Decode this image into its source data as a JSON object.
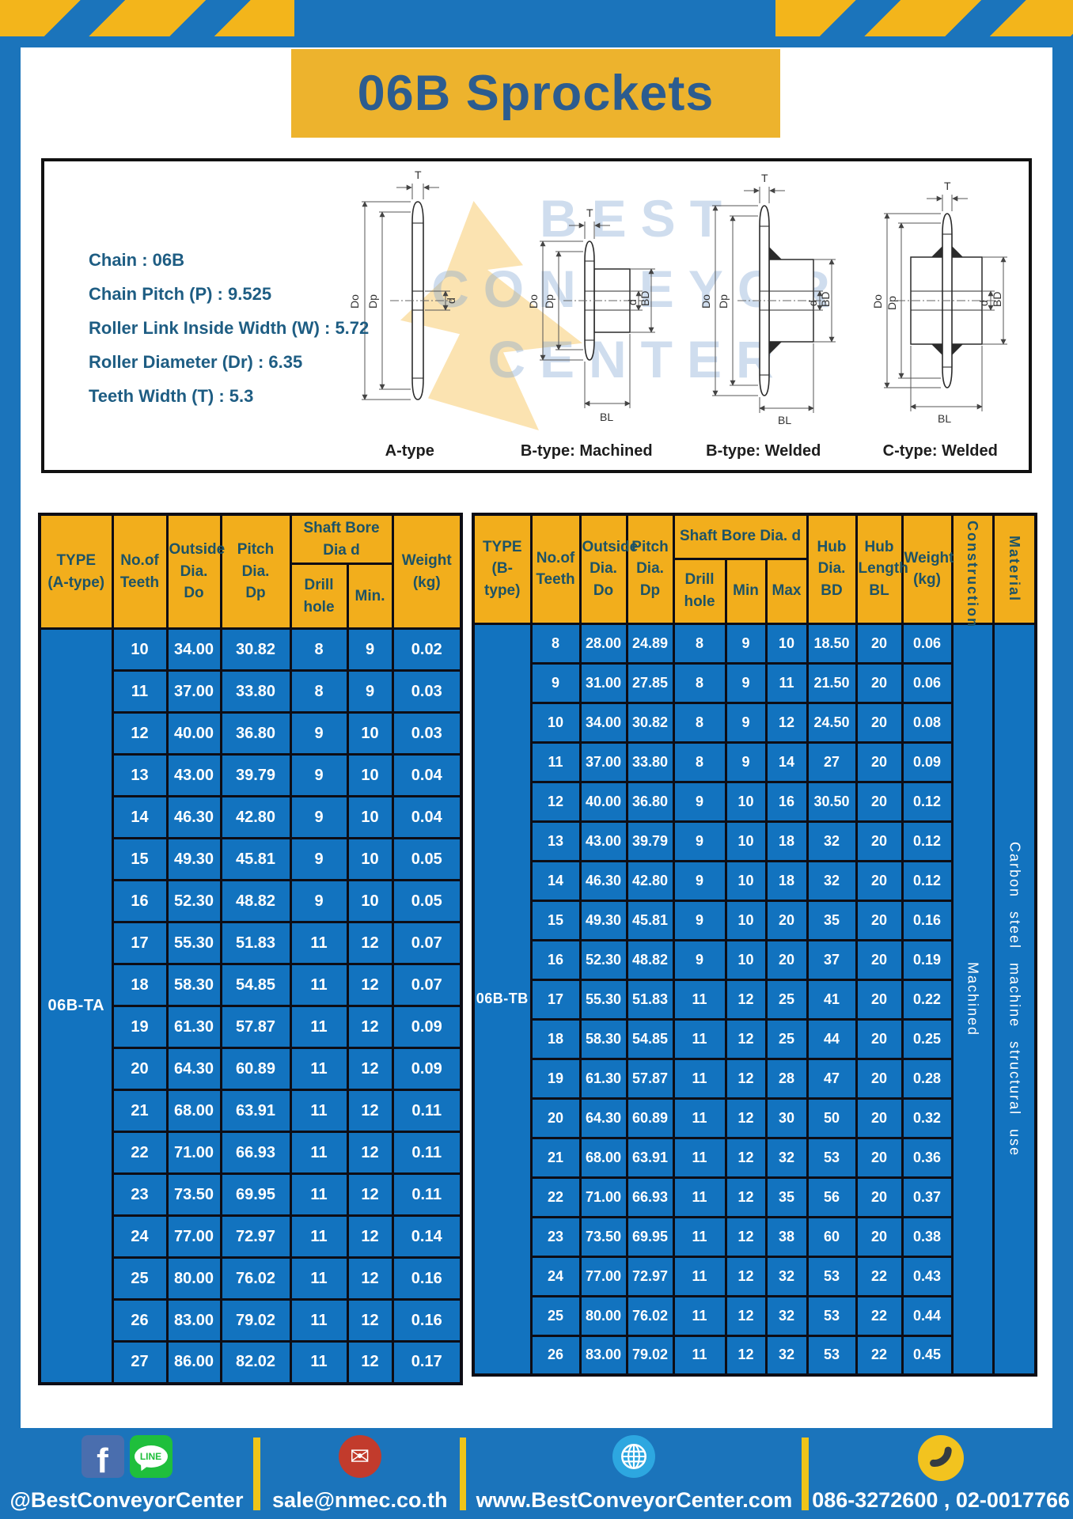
{
  "palette": {
    "frame_blue": "#1b74bb",
    "band_yellow": "#f3b51b",
    "title_yellow": "#edb32d",
    "title_text": "#2c5c8f",
    "header_yellow": "#f2ae1c",
    "header_text": "#1d5366",
    "cell_blue": "#1273bf",
    "cell_text": "#ffffff",
    "divider_yellow": "#f0c419"
  },
  "title": "06B Sprockets",
  "specs": [
    "Chain : 06B",
    "Chain Pitch (P) : 9.525",
    "Roller Link Inside Width (W) : 5.72",
    "Roller Diameter (Dr) : 6.35",
    "Teeth Width (T) : 5.3"
  ],
  "diagrams": {
    "watermark": {
      "line1": "BEST",
      "line2": "CONVEYOR",
      "line3": "CENTER"
    },
    "dims": {
      "t": "T",
      "do": "Do",
      "dp": "Dp",
      "d": "d",
      "bd": "BD",
      "bl": "BL"
    },
    "captions": [
      "A-type",
      "B-type: Machined",
      "B-type: Welded",
      "C-type: Welded"
    ]
  },
  "tables": {
    "a": {
      "type_header": "TYPE\n(A-type)",
      "teeth_header": "No.of\nTeeth",
      "outside_header": "Outside\nDia.\nDo",
      "pitch_header": "Pitch Dia.\nDp",
      "bore_group_header": "Shaft Bore Dia d",
      "drill_header": "Drill hole",
      "min_header": "Min.",
      "weight_header": "Weight\n(kg)",
      "type_label": "06B-TA",
      "rows": [
        [
          "10",
          "34.00",
          "30.82",
          "8",
          "9",
          "0.02"
        ],
        [
          "11",
          "37.00",
          "33.80",
          "8",
          "9",
          "0.03"
        ],
        [
          "12",
          "40.00",
          "36.80",
          "9",
          "10",
          "0.03"
        ],
        [
          "13",
          "43.00",
          "39.79",
          "9",
          "10",
          "0.04"
        ],
        [
          "14",
          "46.30",
          "42.80",
          "9",
          "10",
          "0.04"
        ],
        [
          "15",
          "49.30",
          "45.81",
          "9",
          "10",
          "0.05"
        ],
        [
          "16",
          "52.30",
          "48.82",
          "9",
          "10",
          "0.05"
        ],
        [
          "17",
          "55.30",
          "51.83",
          "11",
          "12",
          "0.07"
        ],
        [
          "18",
          "58.30",
          "54.85",
          "11",
          "12",
          "0.07"
        ],
        [
          "19",
          "61.30",
          "57.87",
          "11",
          "12",
          "0.09"
        ],
        [
          "20",
          "64.30",
          "60.89",
          "11",
          "12",
          "0.09"
        ],
        [
          "21",
          "68.00",
          "63.91",
          "11",
          "12",
          "0.11"
        ],
        [
          "22",
          "71.00",
          "66.93",
          "11",
          "12",
          "0.11"
        ],
        [
          "23",
          "73.50",
          "69.95",
          "11",
          "12",
          "0.11"
        ],
        [
          "24",
          "77.00",
          "72.97",
          "11",
          "12",
          "0.14"
        ],
        [
          "25",
          "80.00",
          "76.02",
          "11",
          "12",
          "0.16"
        ],
        [
          "26",
          "83.00",
          "79.02",
          "11",
          "12",
          "0.16"
        ],
        [
          "27",
          "86.00",
          "82.02",
          "11",
          "12",
          "0.17"
        ]
      ]
    },
    "b": {
      "type_header": "TYPE\n(B-type)",
      "teeth_header": "No.of\nTeeth",
      "outside_header": "Outside\nDia.\nDo",
      "pitch_header": "Pitch\nDia.\nDp",
      "bore_group_header": "Shaft Bore Dia. d",
      "drill_header": "Drill hole",
      "min_header": "Min",
      "max_header": "Max",
      "hub_dia_header": "Hub\nDia.\nBD",
      "hub_len_header": "Hub\nLength\nBL",
      "weight_header": "Weight\n(kg)",
      "construction_header": "Construction",
      "material_header": "Material",
      "type_label": "06B-TB",
      "construction_value": "Machined",
      "material_value": "Carbon steel machine structural use",
      "rows": [
        [
          "8",
          "28.00",
          "24.89",
          "8",
          "9",
          "10",
          "18.50",
          "20",
          "0.06"
        ],
        [
          "9",
          "31.00",
          "27.85",
          "8",
          "9",
          "11",
          "21.50",
          "20",
          "0.06"
        ],
        [
          "10",
          "34.00",
          "30.82",
          "8",
          "9",
          "12",
          "24.50",
          "20",
          "0.08"
        ],
        [
          "11",
          "37.00",
          "33.80",
          "8",
          "9",
          "14",
          "27",
          "20",
          "0.09"
        ],
        [
          "12",
          "40.00",
          "36.80",
          "9",
          "10",
          "16",
          "30.50",
          "20",
          "0.12"
        ],
        [
          "13",
          "43.00",
          "39.79",
          "9",
          "10",
          "18",
          "32",
          "20",
          "0.12"
        ],
        [
          "14",
          "46.30",
          "42.80",
          "9",
          "10",
          "18",
          "32",
          "20",
          "0.12"
        ],
        [
          "15",
          "49.30",
          "45.81",
          "9",
          "10",
          "20",
          "35",
          "20",
          "0.16"
        ],
        [
          "16",
          "52.30",
          "48.82",
          "9",
          "10",
          "20",
          "37",
          "20",
          "0.19"
        ],
        [
          "17",
          "55.30",
          "51.83",
          "11",
          "12",
          "25",
          "41",
          "20",
          "0.22"
        ],
        [
          "18",
          "58.30",
          "54.85",
          "11",
          "12",
          "25",
          "44",
          "20",
          "0.25"
        ],
        [
          "19",
          "61.30",
          "57.87",
          "11",
          "12",
          "28",
          "47",
          "20",
          "0.28"
        ],
        [
          "20",
          "64.30",
          "60.89",
          "11",
          "12",
          "30",
          "50",
          "20",
          "0.32"
        ],
        [
          "21",
          "68.00",
          "63.91",
          "11",
          "12",
          "32",
          "53",
          "20",
          "0.36"
        ],
        [
          "22",
          "71.00",
          "66.93",
          "11",
          "12",
          "35",
          "56",
          "20",
          "0.37"
        ],
        [
          "23",
          "73.50",
          "69.95",
          "11",
          "12",
          "38",
          "60",
          "20",
          "0.38"
        ],
        [
          "24",
          "77.00",
          "72.97",
          "11",
          "12",
          "32",
          "53",
          "22",
          "0.43"
        ],
        [
          "25",
          "80.00",
          "76.02",
          "11",
          "12",
          "32",
          "53",
          "22",
          "0.44"
        ],
        [
          "26",
          "83.00",
          "79.02",
          "11",
          "12",
          "32",
          "53",
          "22",
          "0.45"
        ]
      ]
    }
  },
  "footer": {
    "social_label": "@BestConveyorCenter",
    "line_badge": "LINE",
    "facebook_letter": "f",
    "email": "sale@nmec.co.th",
    "mail_glyph": "✉",
    "website": "www.BestConveyorCenter.com",
    "phones": "086-3272600 , 02-0017766"
  }
}
